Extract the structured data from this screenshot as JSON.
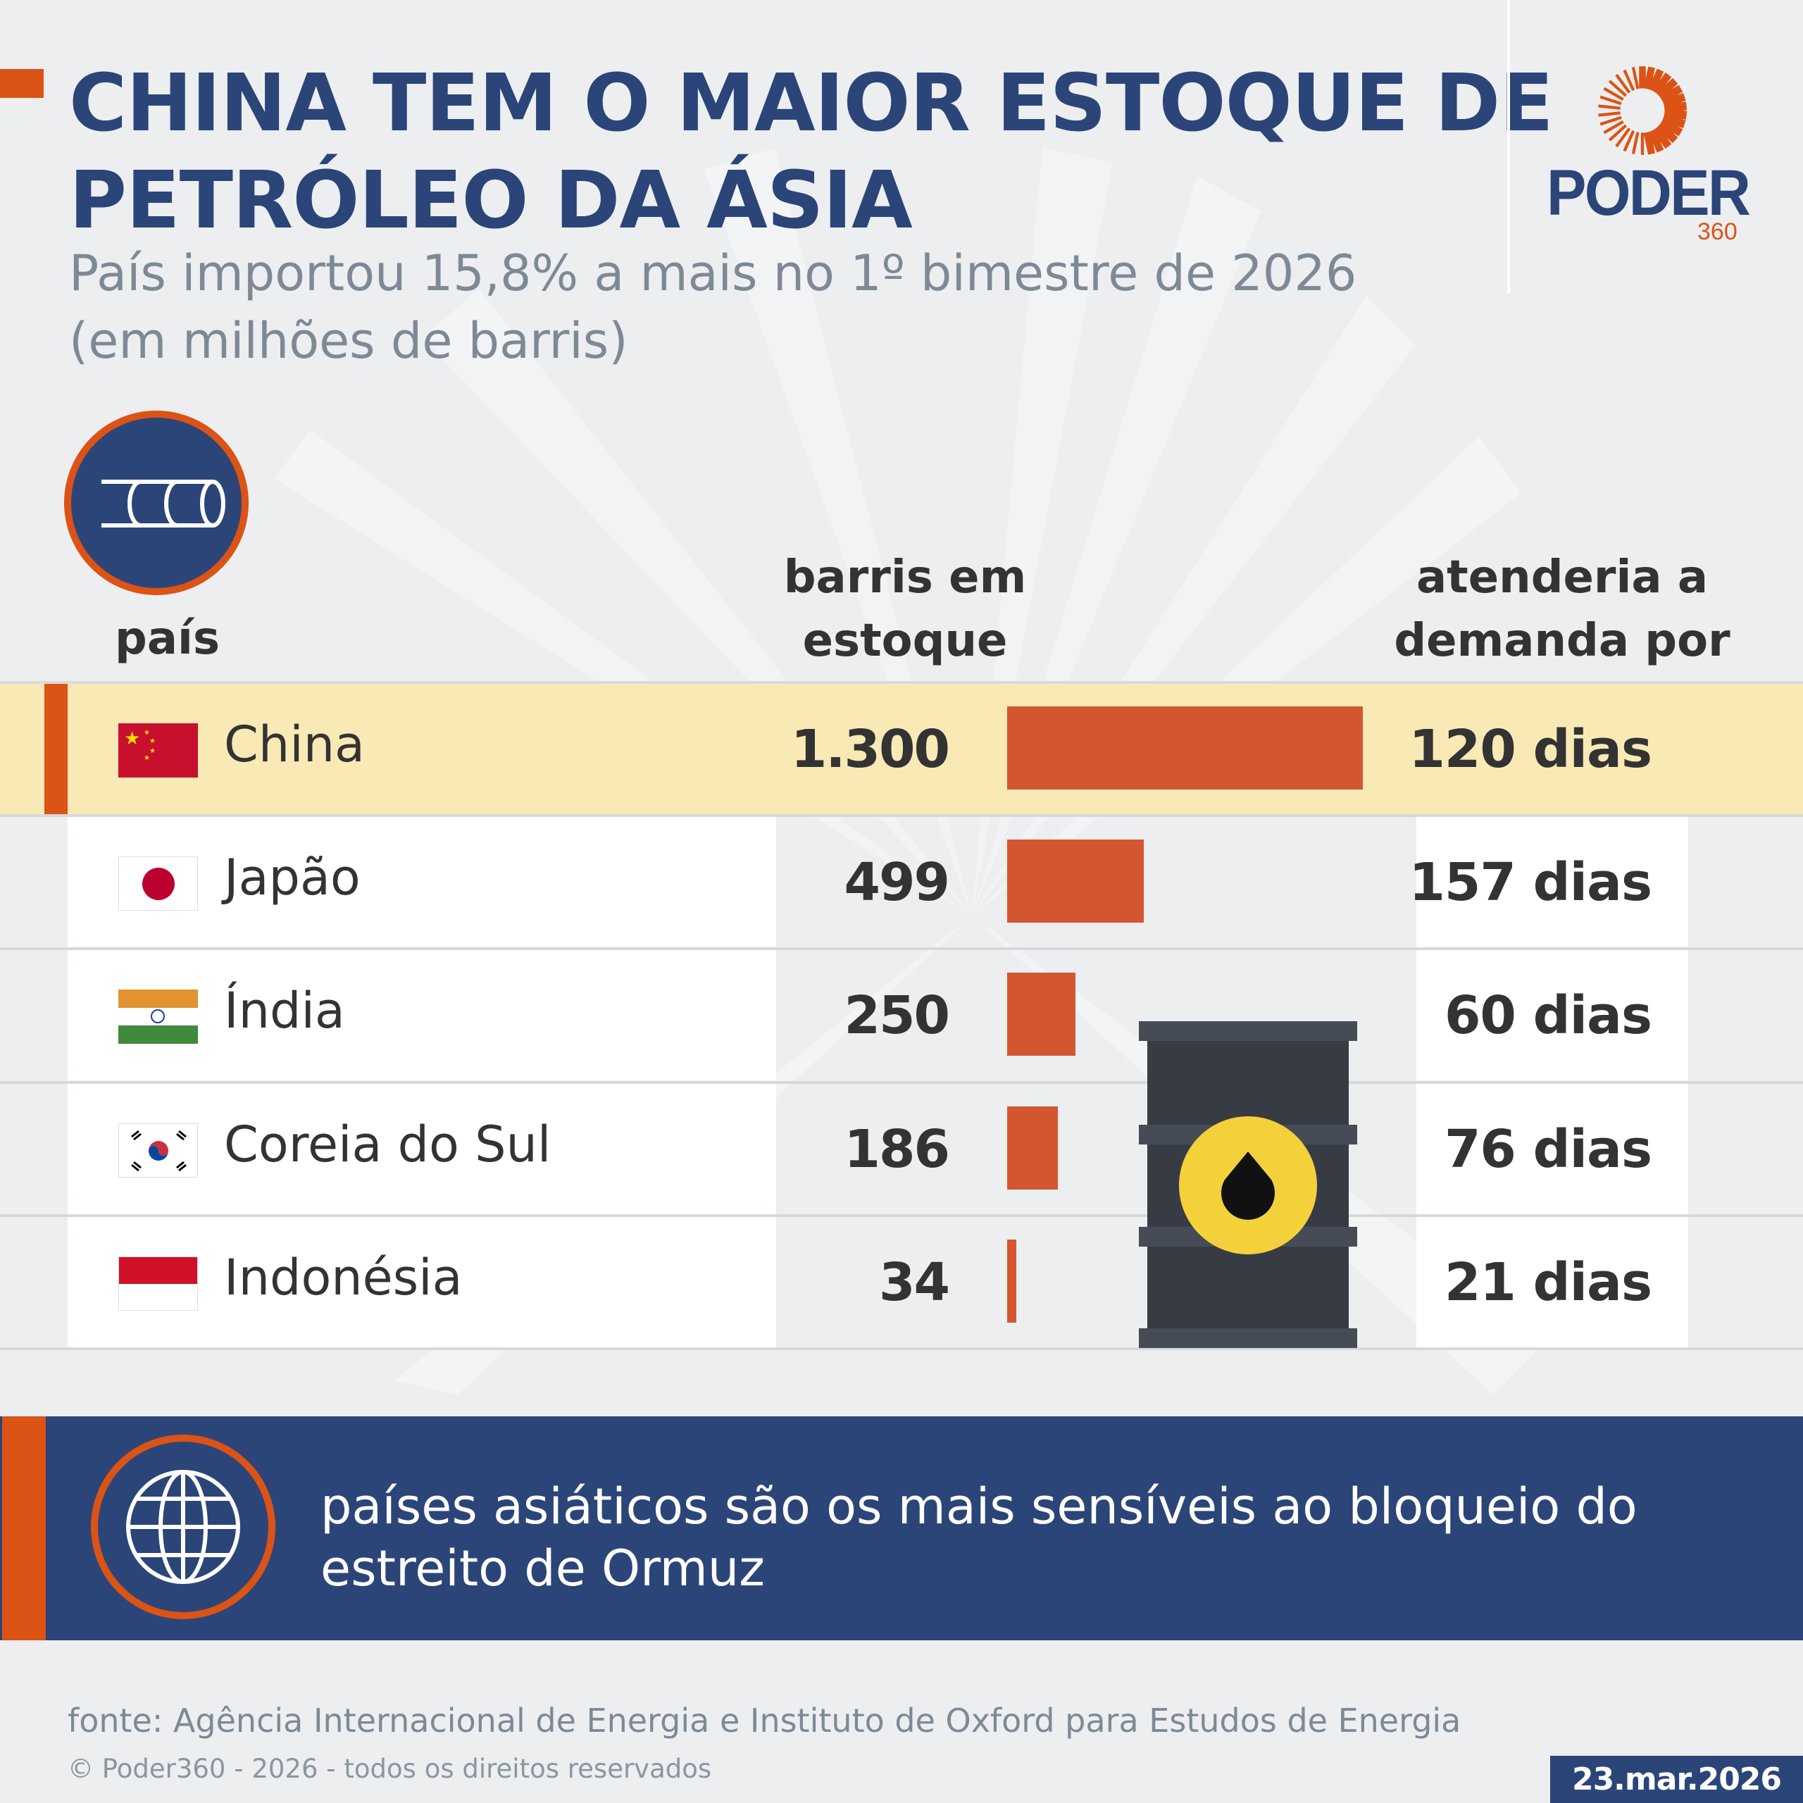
{
  "header": {
    "title_line1": "CHINA TEM O MAIOR ESTOQUE DE",
    "title_line2": "PETRÓLEO DA ÁSIA",
    "subtitle_line1": "País importou 15,8% a mais no 1º bimestre de 2026",
    "subtitle_line2": "(em milhões de barris)"
  },
  "logo": {
    "word": "PODER",
    "number": "360"
  },
  "table": {
    "col_country": "país",
    "col_stock_line1": "barris em",
    "col_stock_line2": "estoque",
    "col_days_line1": "atenderia a",
    "col_days_line2": "demanda por",
    "rows": [
      {
        "country": "China",
        "stock": "1.300",
        "stock_value": 1300,
        "days": "120 dias",
        "highlight": true
      },
      {
        "country": "Japão",
        "stock": "499",
        "stock_value": 499,
        "days": "157 dias"
      },
      {
        "country": "Índia",
        "stock": "250",
        "stock_value": 250,
        "days": "60 dias"
      },
      {
        "country": "Coreia do Sul",
        "stock": "186",
        "stock_value": 186,
        "days": "76 dias"
      },
      {
        "country": "Indonésia",
        "stock": "34",
        "stock_value": 34,
        "days": "21 dias"
      }
    ]
  },
  "chart_data": {
    "type": "bar",
    "categories": [
      "China",
      "Japão",
      "Índia",
      "Coreia do Sul",
      "Indonésia"
    ],
    "values": [
      1300,
      499,
      250,
      186,
      34
    ],
    "ylabel": "barris em estoque (milhões)",
    "days": [
      120,
      157,
      60,
      76,
      21
    ]
  },
  "banner": {
    "line1": "países asiáticos são os mais sensíveis ao bloqueio do",
    "line2": "estreito de Ormuz"
  },
  "footer": {
    "source": "fonte: Agência Internacional de Energia e Instituto de Oxford para Estudos de Energia",
    "copyright": "© Poder360 - 2026 - todos os direitos reservados",
    "date": "23.mar.2026"
  },
  "colors": {
    "navy": "#2b4579",
    "orange": "#dc5316",
    "bar": "#d35630",
    "highlight": "#f9e9b5"
  }
}
